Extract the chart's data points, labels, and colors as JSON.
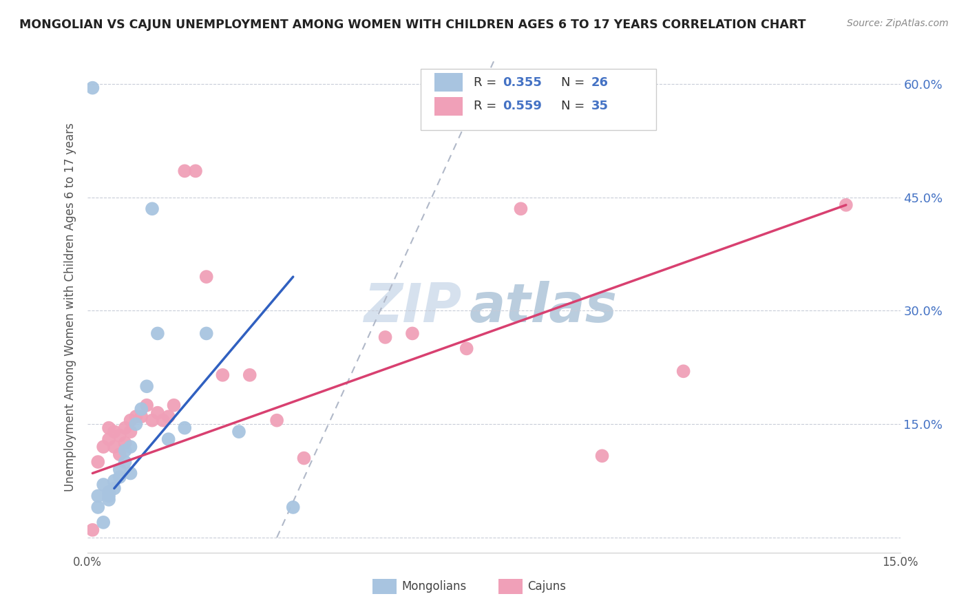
{
  "title": "MONGOLIAN VS CAJUN UNEMPLOYMENT AMONG WOMEN WITH CHILDREN AGES 6 TO 17 YEARS CORRELATION CHART",
  "source": "Source: ZipAtlas.com",
  "ylabel": "Unemployment Among Women with Children Ages 6 to 17 years",
  "xlim": [
    0,
    0.15
  ],
  "ylim": [
    -0.02,
    0.63
  ],
  "yticks": [
    0.0,
    0.15,
    0.3,
    0.45,
    0.6
  ],
  "ytick_labels": [
    "",
    "15.0%",
    "30.0%",
    "45.0%",
    "60.0%"
  ],
  "mongolian_R": 0.355,
  "mongolian_N": 26,
  "cajun_R": 0.559,
  "cajun_N": 35,
  "mongolian_color": "#a8c4e0",
  "cajun_color": "#f0a0b8",
  "mongolian_line_color": "#3060c0",
  "cajun_line_color": "#d84070",
  "dashed_line_color": "#b0b8c8",
  "watermark_zip": "ZIP",
  "watermark_atlas": "atlas",
  "watermark_color_zip": "#c5d5e8",
  "watermark_color_atlas": "#9db8d0",
  "mongolian_x": [
    0.001,
    0.002,
    0.003,
    0.003,
    0.004,
    0.004,
    0.005,
    0.005,
    0.006,
    0.006,
    0.007,
    0.007,
    0.008,
    0.008,
    0.009,
    0.01,
    0.011,
    0.012,
    0.013,
    0.015,
    0.018,
    0.022,
    0.028,
    0.038,
    0.002,
    0.004
  ],
  "mongolian_y": [
    0.595,
    0.04,
    0.07,
    0.02,
    0.05,
    0.06,
    0.065,
    0.075,
    0.08,
    0.09,
    0.1,
    0.115,
    0.12,
    0.085,
    0.15,
    0.17,
    0.2,
    0.435,
    0.27,
    0.13,
    0.145,
    0.27,
    0.14,
    0.04,
    0.055,
    0.055
  ],
  "cajun_x": [
    0.001,
    0.002,
    0.003,
    0.004,
    0.004,
    0.005,
    0.005,
    0.006,
    0.006,
    0.007,
    0.007,
    0.008,
    0.008,
    0.009,
    0.01,
    0.011,
    0.012,
    0.013,
    0.014,
    0.015,
    0.016,
    0.018,
    0.02,
    0.022,
    0.025,
    0.03,
    0.035,
    0.04,
    0.055,
    0.06,
    0.07,
    0.08,
    0.095,
    0.11,
    0.14
  ],
  "cajun_y": [
    0.01,
    0.1,
    0.12,
    0.13,
    0.145,
    0.12,
    0.14,
    0.11,
    0.135,
    0.125,
    0.145,
    0.155,
    0.14,
    0.16,
    0.16,
    0.175,
    0.155,
    0.165,
    0.155,
    0.16,
    0.175,
    0.485,
    0.485,
    0.345,
    0.215,
    0.215,
    0.155,
    0.105,
    0.265,
    0.27,
    0.25,
    0.435,
    0.108,
    0.22,
    0.44
  ],
  "mongolian_line_x": [
    0.005,
    0.038
  ],
  "mongolian_line_y": [
    0.065,
    0.345
  ],
  "cajun_line_x": [
    0.001,
    0.14
  ],
  "cajun_line_y": [
    0.085,
    0.44
  ],
  "dash_line_x": [
    0.035,
    0.075
  ],
  "dash_line_y": [
    0.0,
    0.63
  ]
}
